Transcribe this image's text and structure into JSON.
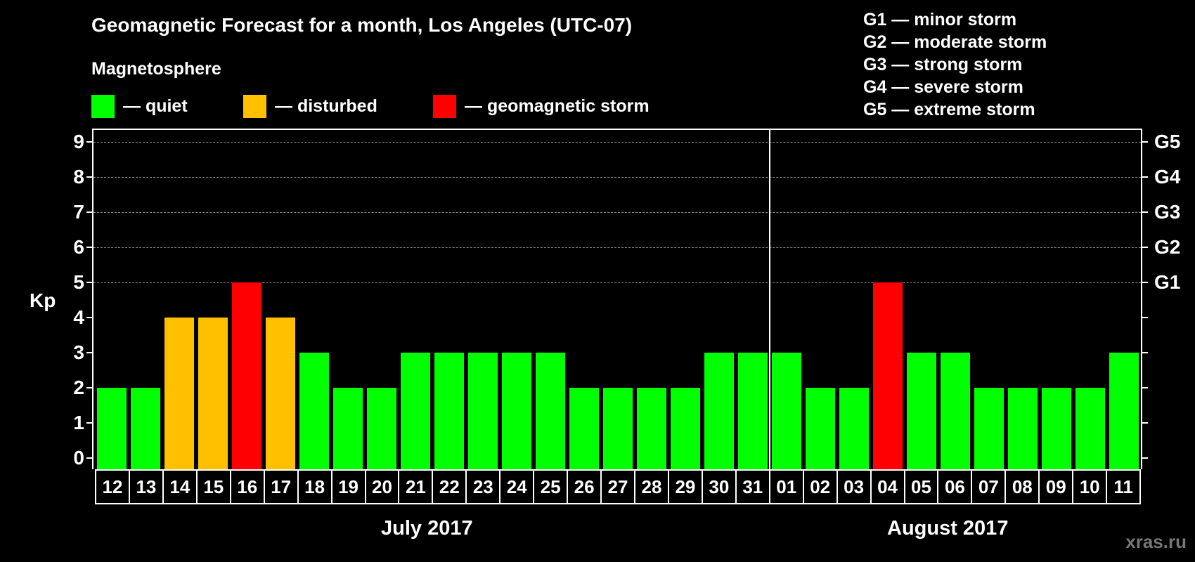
{
  "title": "Geomagnetic Forecast for a month, Los Angeles (UTC-07)",
  "subtitle": "Magnetosphere",
  "legend": [
    {
      "label": "— quiet",
      "color": "#00ff00"
    },
    {
      "label": "— disturbed",
      "color": "#ffc000"
    },
    {
      "label": "— geomagnetic storm",
      "color": "#ff0000"
    }
  ],
  "gscale": [
    "G1 — minor storm",
    "G2 — moderate storm",
    "G3 — strong storm",
    "G4 — severe storm",
    "G5 — extreme storm"
  ],
  "ylabel": "Kp",
  "months": [
    "July 2017",
    "August 2017"
  ],
  "watermark": "xras.ru",
  "chart_data": {
    "type": "bar",
    "title": "Geomagnetic Forecast for a month, Los Angeles (UTC-07)",
    "xlabel": "",
    "ylabel": "Kp",
    "ylim": [
      0,
      9
    ],
    "yticks": [
      0,
      1,
      2,
      3,
      4,
      5,
      6,
      7,
      8,
      9
    ],
    "right_axis_labels": {
      "5": "G1",
      "6": "G2",
      "7": "G3",
      "8": "G4",
      "9": "G5"
    },
    "grid": "dashed horizontal at Kp 5-9",
    "month_groups": [
      {
        "label": "July 2017",
        "days": [
          "12",
          "13",
          "14",
          "15",
          "16",
          "17",
          "18",
          "19",
          "20",
          "21",
          "22",
          "23",
          "24",
          "25",
          "26",
          "27",
          "28",
          "29",
          "30",
          "31"
        ]
      },
      {
        "label": "August 2017",
        "days": [
          "01",
          "02",
          "03",
          "04",
          "05",
          "06",
          "07",
          "08",
          "09",
          "10",
          "11"
        ]
      }
    ],
    "categories": [
      "12",
      "13",
      "14",
      "15",
      "16",
      "17",
      "18",
      "19",
      "20",
      "21",
      "22",
      "23",
      "24",
      "25",
      "26",
      "27",
      "28",
      "29",
      "30",
      "31",
      "01",
      "02",
      "03",
      "04",
      "05",
      "06",
      "07",
      "08",
      "09",
      "10",
      "11"
    ],
    "values": [
      2,
      2,
      4,
      4,
      5,
      4,
      3,
      2,
      2,
      3,
      3,
      3,
      3,
      3,
      2,
      2,
      2,
      2,
      3,
      3,
      3,
      2,
      2,
      5,
      3,
      3,
      2,
      2,
      2,
      2,
      3
    ],
    "status": [
      "quiet",
      "quiet",
      "disturbed",
      "disturbed",
      "storm",
      "disturbed",
      "quiet",
      "quiet",
      "quiet",
      "quiet",
      "quiet",
      "quiet",
      "quiet",
      "quiet",
      "quiet",
      "quiet",
      "quiet",
      "quiet",
      "quiet",
      "quiet",
      "quiet",
      "quiet",
      "quiet",
      "storm",
      "quiet",
      "quiet",
      "quiet",
      "quiet",
      "quiet",
      "quiet",
      "quiet"
    ],
    "colors": {
      "quiet": "#00ff00",
      "disturbed": "#ffc000",
      "storm": "#ff0000"
    },
    "legend": [
      "quiet",
      "disturbed",
      "geomagnetic storm"
    ]
  }
}
